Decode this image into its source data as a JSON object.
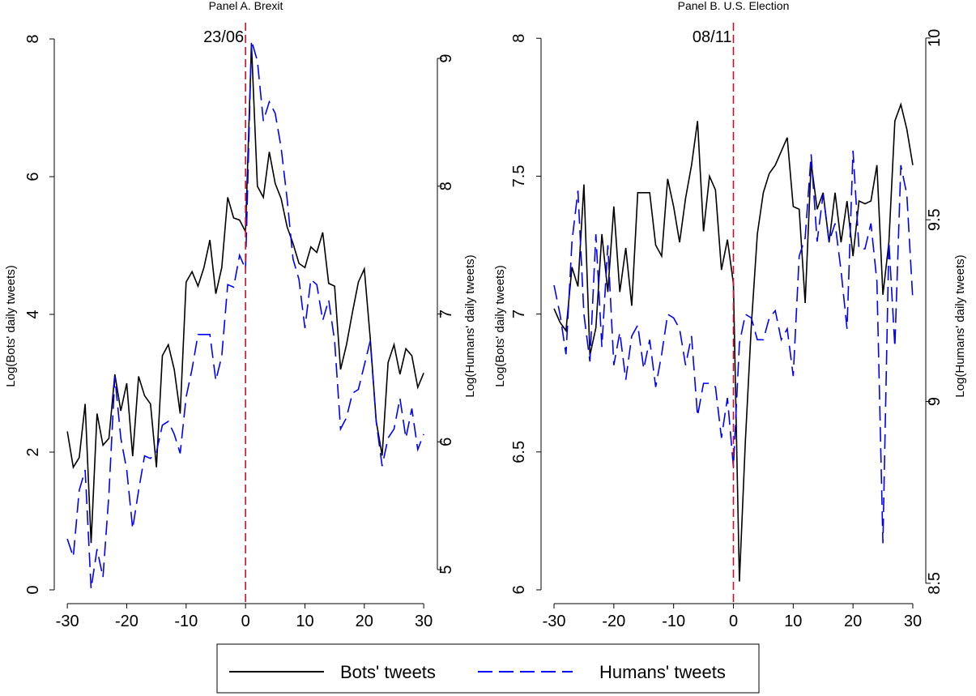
{
  "chart_data": [
    {
      "type": "line",
      "title": "Panel A. Brexit",
      "y_label": "Log(Bots' daily tweets)",
      "y2_label": "Log(Humans' daily tweets)",
      "x": [
        -30,
        -29,
        -28,
        -27,
        -26,
        -25,
        -24,
        -23,
        -22,
        -21,
        -20,
        -19,
        -18,
        -17,
        -16,
        -15,
        -14,
        -13,
        -12,
        -11,
        -10,
        -9,
        -8,
        -7,
        -6,
        -5,
        -4,
        -3,
        -2,
        -1,
        0,
        1,
        2,
        3,
        4,
        5,
        6,
        7,
        8,
        9,
        10,
        11,
        12,
        13,
        14,
        15,
        16,
        17,
        18,
        19,
        20,
        21,
        22,
        23,
        24,
        25,
        26,
        27,
        28,
        29,
        30
      ],
      "xlim": [
        -32.2,
        32.3
      ],
      "xticks": [
        -30,
        -20,
        -10,
        0,
        10,
        20,
        30
      ],
      "ylim": [
        -0.2,
        8.33
      ],
      "yticks": [
        0,
        2,
        4,
        6,
        8
      ],
      "y2lim": [
        4.734,
        9.33
      ],
      "y2ticks": [
        5,
        6,
        7,
        8,
        9
      ],
      "vline": {
        "x": 0,
        "label": "23/06",
        "color": "#c8102e"
      },
      "series": [
        {
          "name": "Bots' tweets",
          "color": "#000000",
          "dash": "solid",
          "axis": "y",
          "values": [
            2.3,
            1.78,
            1.92,
            2.7,
            0.68,
            2.56,
            2.1,
            2.2,
            3.13,
            2.6,
            3.0,
            1.94,
            3.1,
            2.82,
            2.7,
            1.78,
            3.4,
            3.56,
            3.2,
            2.56,
            4.47,
            4.62,
            4.41,
            4.68,
            5.08,
            4.3,
            4.68,
            5.7,
            5.4,
            5.37,
            5.2,
            7.92,
            5.86,
            5.7,
            6.36,
            5.9,
            5.68,
            5.27,
            5.03,
            4.74,
            4.68,
            4.98,
            4.9,
            5.19,
            4.45,
            4.41,
            3.2,
            3.56,
            4.03,
            4.47,
            4.66,
            3.65,
            2.45,
            1.95,
            3.3,
            3.56,
            3.13,
            3.5,
            3.4,
            2.94,
            3.15
          ]
        },
        {
          "name": "Humans' tweets",
          "color": "#0000ff",
          "dash": "dashed",
          "axis": "y2",
          "values": [
            5.24,
            5.1,
            5.62,
            5.78,
            4.85,
            5.16,
            4.94,
            5.59,
            6.51,
            6.03,
            5.78,
            5.32,
            5.62,
            5.89,
            5.87,
            5.92,
            6.13,
            6.16,
            6.06,
            5.91,
            6.35,
            6.57,
            6.84,
            6.84,
            6.84,
            6.48,
            6.67,
            7.23,
            7.21,
            7.46,
            7.35,
            9.14,
            8.98,
            8.51,
            8.66,
            8.57,
            8.3,
            7.9,
            7.43,
            7.27,
            6.89,
            7.27,
            7.23,
            6.95,
            7.11,
            6.79,
            6.1,
            6.19,
            6.38,
            6.41,
            6.6,
            6.79,
            6.16,
            5.81,
            6.03,
            6.1,
            6.34,
            6.03,
            6.26,
            5.94,
            6.06
          ]
        }
      ]
    },
    {
      "type": "line",
      "title": "Panel B. U.S. Election",
      "y_label": "Log(Bots' daily tweets)",
      "y2_label": "Log(Humans' daily tweets)",
      "x": [
        -30,
        -29,
        -28,
        -27,
        -26,
        -25,
        -24,
        -23,
        -22,
        -21,
        -20,
        -19,
        -18,
        -17,
        -16,
        -15,
        -14,
        -13,
        -12,
        -11,
        -10,
        -9,
        -8,
        -7,
        -6,
        -5,
        -4,
        -3,
        -2,
        -1,
        0,
        1,
        2,
        3,
        4,
        5,
        6,
        7,
        8,
        9,
        10,
        11,
        12,
        13,
        14,
        15,
        16,
        17,
        18,
        19,
        20,
        21,
        22,
        23,
        24,
        25,
        26,
        27,
        28,
        29,
        30
      ],
      "xlim": [
        -32.17,
        32.17
      ],
      "xticks": [
        -30,
        -20,
        -10,
        0,
        10,
        20,
        30
      ],
      "ylim": [
        5.95,
        8.08
      ],
      "yticks": [
        6,
        6.5,
        7,
        7.5,
        8
      ],
      "y2lim": [
        8.444,
        10.06
      ],
      "y2ticks": [
        8.5,
        9,
        9.5,
        10
      ],
      "vline": {
        "x": 0,
        "label": "08/11",
        "color": "#c8102e"
      },
      "series": [
        {
          "color": "#000000",
          "dash": "solid",
          "axis": "y",
          "values": [
            7.02,
            6.97,
            6.94,
            7.17,
            7.1,
            7.47,
            6.85,
            6.95,
            7.29,
            7.08,
            7.39,
            7.08,
            7.24,
            7.03,
            7.44,
            7.44,
            7.44,
            7.25,
            7.21,
            7.49,
            7.39,
            7.26,
            7.42,
            7.54,
            7.7,
            7.3,
            7.5,
            7.45,
            7.16,
            7.27,
            7.11,
            6.03,
            6.54,
            6.96,
            7.29,
            7.44,
            7.51,
            7.54,
            7.59,
            7.64,
            7.39,
            7.38,
            7.04,
            7.55,
            7.38,
            7.44,
            7.26,
            7.44,
            7.26,
            7.41,
            7.21,
            7.41,
            7.4,
            7.41,
            7.54,
            7.07,
            7.26,
            7.7,
            7.76,
            7.67,
            7.54
          ]
        },
        {
          "color": "#0000ff",
          "dash": "dashed",
          "axis": "y2",
          "values": [
            9.32,
            9.24,
            9.13,
            9.44,
            9.58,
            9.24,
            9.11,
            9.46,
            9.15,
            9.43,
            9.1,
            9.19,
            9.06,
            9.18,
            9.21,
            9.09,
            9.17,
            9.04,
            9.13,
            9.24,
            9.23,
            9.2,
            9.1,
            9.18,
            8.96,
            9.05,
            9.05,
            9.04,
            8.9,
            9.01,
            8.82,
            9.16,
            9.24,
            9.23,
            9.17,
            9.17,
            9.23,
            9.25,
            9.17,
            9.2,
            9.07,
            9.4,
            9.45,
            9.68,
            9.44,
            9.57,
            9.44,
            9.49,
            9.36,
            9.2,
            9.69,
            9.42,
            9.42,
            9.49,
            9.33,
            8.61,
            9.44,
            9.15,
            9.65,
            9.57,
            9.28
          ]
        }
      ]
    }
  ],
  "legend": [
    "Bots' tweets",
    "Humans' tweets"
  ]
}
